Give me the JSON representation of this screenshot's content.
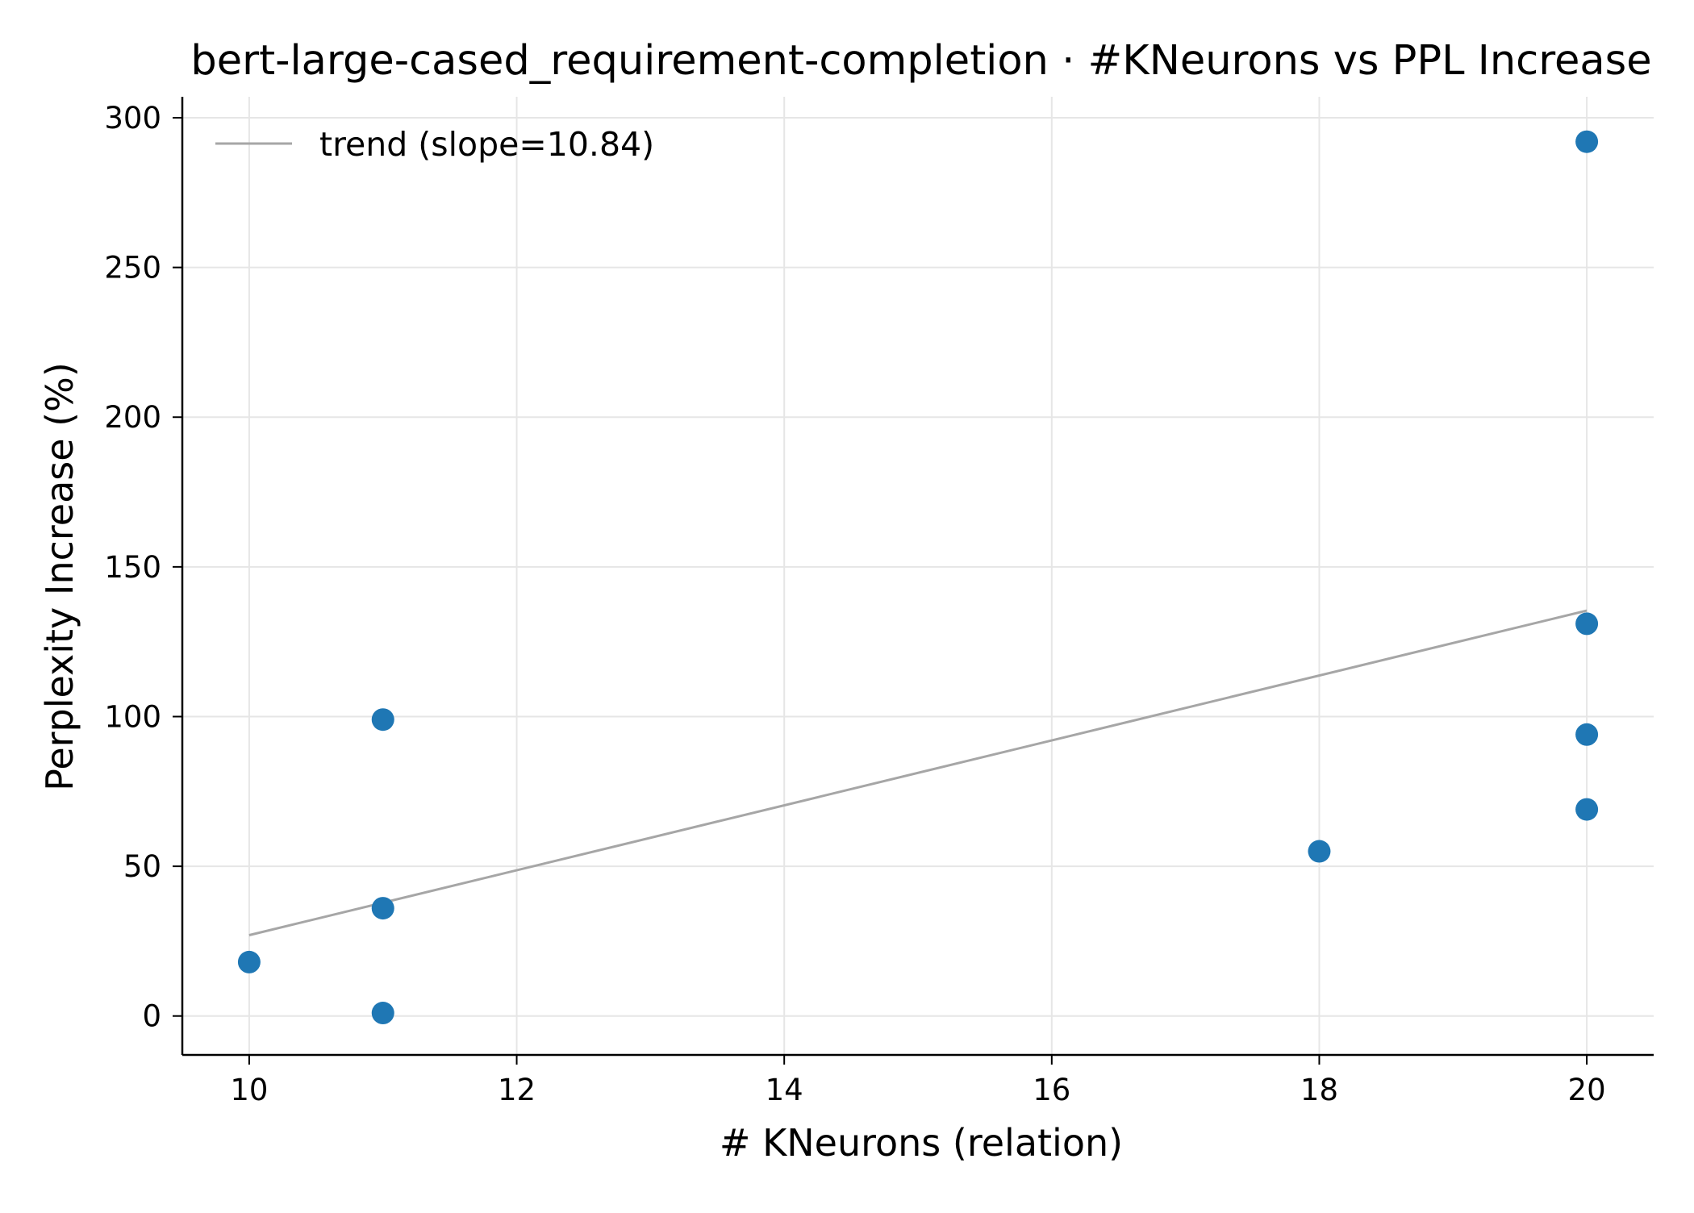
{
  "chart_data": {
    "type": "scatter",
    "title": "bert-large-cased_requirement-completion · #KNeurons vs PPL Increase",
    "xlabel": "# KNeurons (relation)",
    "ylabel": "Perplexity Increase (%)",
    "xlim": [
      9.5,
      20.5
    ],
    "ylim": [
      -13,
      307
    ],
    "xticks": [
      10,
      12,
      14,
      16,
      18,
      20
    ],
    "yticks": [
      0,
      50,
      100,
      150,
      200,
      250,
      300
    ],
    "grid": true,
    "legend_position": "top-left",
    "colors": {
      "points": "#1f77b4",
      "trend": "#a6a6a6",
      "grid": "#e6e6e6",
      "axis": "#000000"
    },
    "series": [
      {
        "points": [
          {
            "x": 10,
            "y": 18
          },
          {
            "x": 11,
            "y": 99
          },
          {
            "x": 11,
            "y": 36
          },
          {
            "x": 11,
            "y": 1
          },
          {
            "x": 18,
            "y": 55
          },
          {
            "x": 20,
            "y": 292
          },
          {
            "x": 20,
            "y": 131
          },
          {
            "x": 20,
            "y": 94
          },
          {
            "x": 20,
            "y": 69
          }
        ]
      }
    ],
    "trend": {
      "name": "trend (slope=10.84)",
      "slope": 10.84,
      "start": {
        "x": 10,
        "y": 27
      },
      "end": {
        "x": 20,
        "y": 135.4
      }
    }
  }
}
